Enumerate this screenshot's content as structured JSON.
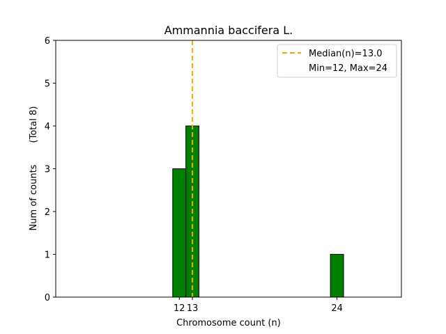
{
  "chart_data": {
    "type": "bar",
    "title": "Ammannia baccifera L.",
    "xlabel": "Chromosome count (n)",
    "ylabel": "Num of counts",
    "ylabel_note": "(Total 8)",
    "bars": [
      {
        "x": 12,
        "value": 3
      },
      {
        "x": 13,
        "value": 4
      },
      {
        "x": 24,
        "value": 1
      }
    ],
    "x_ticks": [
      12,
      13,
      24
    ],
    "y_ticks": [
      0,
      1,
      2,
      3,
      4,
      5,
      6
    ],
    "xlim": [
      2.6,
      28.9
    ],
    "ylim": [
      0,
      6
    ],
    "median_line": {
      "x": 13.0,
      "label": "Median(n)=13.0"
    },
    "legend_extra": "Min=12, Max=24",
    "legend_position": "top-right",
    "grid": false,
    "colors": {
      "bar": "#008000",
      "bar_edge": "#000000",
      "median": "#FFA500",
      "baseline": "#008000"
    }
  }
}
